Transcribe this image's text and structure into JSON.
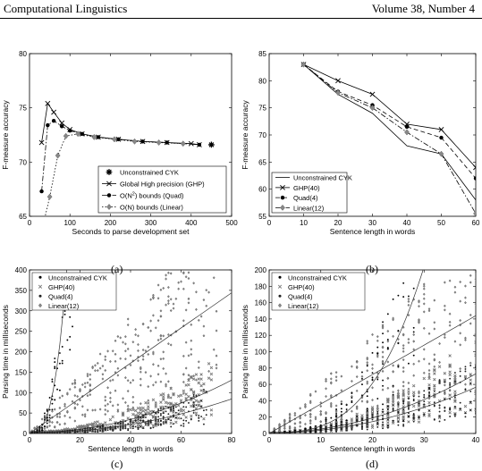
{
  "header": {
    "journal": "Computational Linguistics",
    "volume": "Volume 38, Number 4"
  },
  "captions": [
    "(a)",
    "(b)",
    "(c)",
    "(d)"
  ],
  "chart_data": [
    {
      "type": "line",
      "id": "a",
      "xlabel": "Seconds to parse development set",
      "ylabel": "F-measure accuracy",
      "xlim": [
        0,
        500
      ],
      "ylim": [
        65,
        80
      ],
      "xticks": [
        0,
        100,
        200,
        300,
        400,
        500
      ],
      "yticks": [
        65,
        70,
        75,
        80
      ],
      "legend_position": "bottom-right",
      "series": [
        {
          "name": "Unconstrained CYK",
          "marker": "star",
          "dash": "none",
          "x": [
            450
          ],
          "y": [
            71.6
          ]
        },
        {
          "name": "Global High precision (GHP)",
          "marker": "x",
          "dash": "solid",
          "x": [
            30,
            45,
            60,
            80,
            100,
            130,
            170,
            220,
            280,
            340,
            400,
            420
          ],
          "y": [
            71.8,
            75.4,
            74.6,
            73.6,
            73.0,
            72.6,
            72.3,
            72.1,
            71.9,
            71.8,
            71.7,
            71.6
          ]
        },
        {
          "name": "O(N2) bounds (Quad)",
          "marker": "dot",
          "dash": "dashdot",
          "x": [
            30,
            45,
            60,
            80,
            100,
            130,
            170,
            220,
            280,
            340,
            420
          ],
          "y": [
            67.3,
            73.4,
            73.8,
            73.3,
            72.9,
            72.6,
            72.3,
            72.1,
            71.9,
            71.8,
            71.6
          ]
        },
        {
          "name": "O(N) bounds (Linear)",
          "marker": "diamond",
          "dash": "dotted",
          "x": [
            20,
            50,
            70,
            90,
            120,
            160,
            210,
            260,
            320,
            380
          ],
          "y": [
            62,
            66.8,
            70.6,
            72.4,
            72.6,
            72.3,
            72.1,
            71.9,
            71.8,
            71.7
          ]
        }
      ]
    },
    {
      "type": "line",
      "id": "b",
      "xlabel": "Sentence length in words",
      "ylabel": "F-measure accuracy",
      "xlim": [
        0,
        60
      ],
      "ylim": [
        55,
        85
      ],
      "xticks": [
        0,
        10,
        20,
        30,
        40,
        50,
        60
      ],
      "yticks": [
        55,
        60,
        65,
        70,
        75,
        80,
        85
      ],
      "legend_position": "bottom-left",
      "series": [
        {
          "name": "Unconstrained CYK",
          "marker": "none",
          "dash": "solid",
          "x": [
            10,
            20,
            30,
            40,
            50,
            60
          ],
          "y": [
            83,
            77.5,
            74,
            68,
            66.5,
            58
          ]
        },
        {
          "name": "GHP(40)",
          "marker": "x",
          "dash": "solid",
          "x": [
            10,
            20,
            30,
            40,
            50,
            60
          ],
          "y": [
            83,
            80,
            77.5,
            72,
            71,
            64
          ]
        },
        {
          "name": "Quad(4)",
          "marker": "dot",
          "dash": "dashed",
          "x": [
            10,
            20,
            30,
            40,
            50,
            60
          ],
          "y": [
            83,
            78,
            75.5,
            71.5,
            69.5,
            62
          ]
        },
        {
          "name": "Linear(12)",
          "marker": "diamond",
          "dash": "dashdot",
          "x": [
            10,
            20,
            30,
            40,
            50,
            60
          ],
          "y": [
            83,
            77.8,
            75,
            70.5,
            66.5,
            55.5
          ]
        }
      ]
    },
    {
      "type": "scatter",
      "id": "c",
      "xlabel": "Sentence length in words",
      "ylabel": "Parsing time in milliseconds",
      "xlim": [
        0,
        80
      ],
      "ylim": [
        0,
        400
      ],
      "xticks": [
        0,
        20,
        40,
        60,
        80
      ],
      "yticks": [
        0,
        50,
        100,
        150,
        200,
        250,
        300,
        350,
        400
      ],
      "legend_position": "top-left",
      "series": [
        {
          "name": "Unconstrained CYK",
          "marker": "dot",
          "color": "#000000",
          "xmax": 28,
          "curve": [
            2.2,
            0.125,
            3
          ]
        },
        {
          "name": "GHP(40)",
          "marker": "x",
          "color": "#777777",
          "xmax": 72,
          "curve": [
            2.5,
            0.02,
            2
          ]
        },
        {
          "name": "Quad(4)",
          "marker": "dot",
          "color": "#222222",
          "xmax": 70,
          "curve": [
            1.2,
            0.013,
            2
          ]
        },
        {
          "name": "Linear(12)",
          "marker": "diamond",
          "color": "#666666",
          "xmax": 74,
          "curve": [
            0.0,
            4.3,
            1
          ]
        }
      ]
    },
    {
      "type": "scatter",
      "id": "d",
      "xlabel": "Sentence length in words",
      "ylabel": "Parsing time in milliseconds",
      "xlim": [
        0,
        40
      ],
      "ylim": [
        0,
        200
      ],
      "xticks": [
        0,
        10,
        20,
        30,
        40
      ],
      "yticks": [
        0,
        20,
        40,
        60,
        80,
        100,
        120,
        140,
        160,
        180,
        200
      ],
      "legend_position": "top-left",
      "series": [
        {
          "name": "Unconstrained CYK",
          "marker": "dot",
          "color": "#000000",
          "xmax": 28,
          "curve": [
            1.4,
            0.0075,
            3
          ]
        },
        {
          "name": "GHP(40)",
          "marker": "x",
          "color": "#777777",
          "xmax": 40,
          "curve": [
            1.0,
            0.045,
            2
          ]
        },
        {
          "name": "Quad(4)",
          "marker": "dot",
          "color": "#222222",
          "xmax": 40,
          "curve": [
            0.5,
            0.035,
            2
          ]
        },
        {
          "name": "Linear(12)",
          "marker": "diamond",
          "color": "#666666",
          "xmax": 40,
          "curve": [
            0.0,
            3.6,
            1
          ]
        }
      ]
    }
  ]
}
